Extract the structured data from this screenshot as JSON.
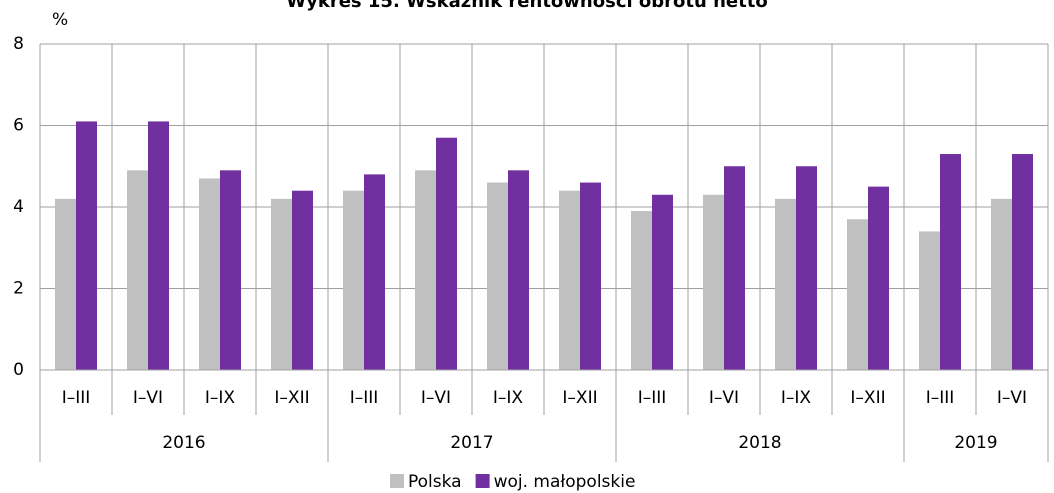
{
  "chart_data": {
    "type": "bar",
    "title": "Wykres 15. Wskaźnik rentowności obrotu netto",
    "y_label": "%",
    "groups": [
      {
        "name": "2016",
        "categories": [
          "I–III",
          "I–VI",
          "I–IX",
          "I–XII"
        ]
      },
      {
        "name": "2017",
        "categories": [
          "I–III",
          "I–VI",
          "I–IX",
          "I–XII"
        ]
      },
      {
        "name": "2018",
        "categories": [
          "I–III",
          "I–VI",
          "I–IX",
          "I–XII"
        ]
      },
      {
        "name": "2019",
        "categories": [
          "I–III",
          "I–VI"
        ]
      }
    ],
    "series": [
      {
        "name": "Polska",
        "color": "#c0c0c0",
        "values": [
          4.2,
          4.9,
          4.7,
          4.2,
          4.4,
          4.9,
          4.6,
          4.4,
          3.9,
          4.3,
          4.2,
          3.7,
          3.4,
          4.2
        ]
      },
      {
        "name": "woj. małopolskie",
        "color": "#7030a0",
        "values": [
          6.1,
          6.1,
          4.9,
          4.4,
          4.8,
          5.7,
          4.9,
          4.6,
          4.3,
          5.0,
          5.0,
          4.5,
          5.3,
          5.3
        ]
      }
    ],
    "ylim": [
      0,
      8
    ],
    "yticks": [
      0,
      2,
      4,
      6,
      8
    ],
    "grid": true,
    "legend": "bottom"
  }
}
